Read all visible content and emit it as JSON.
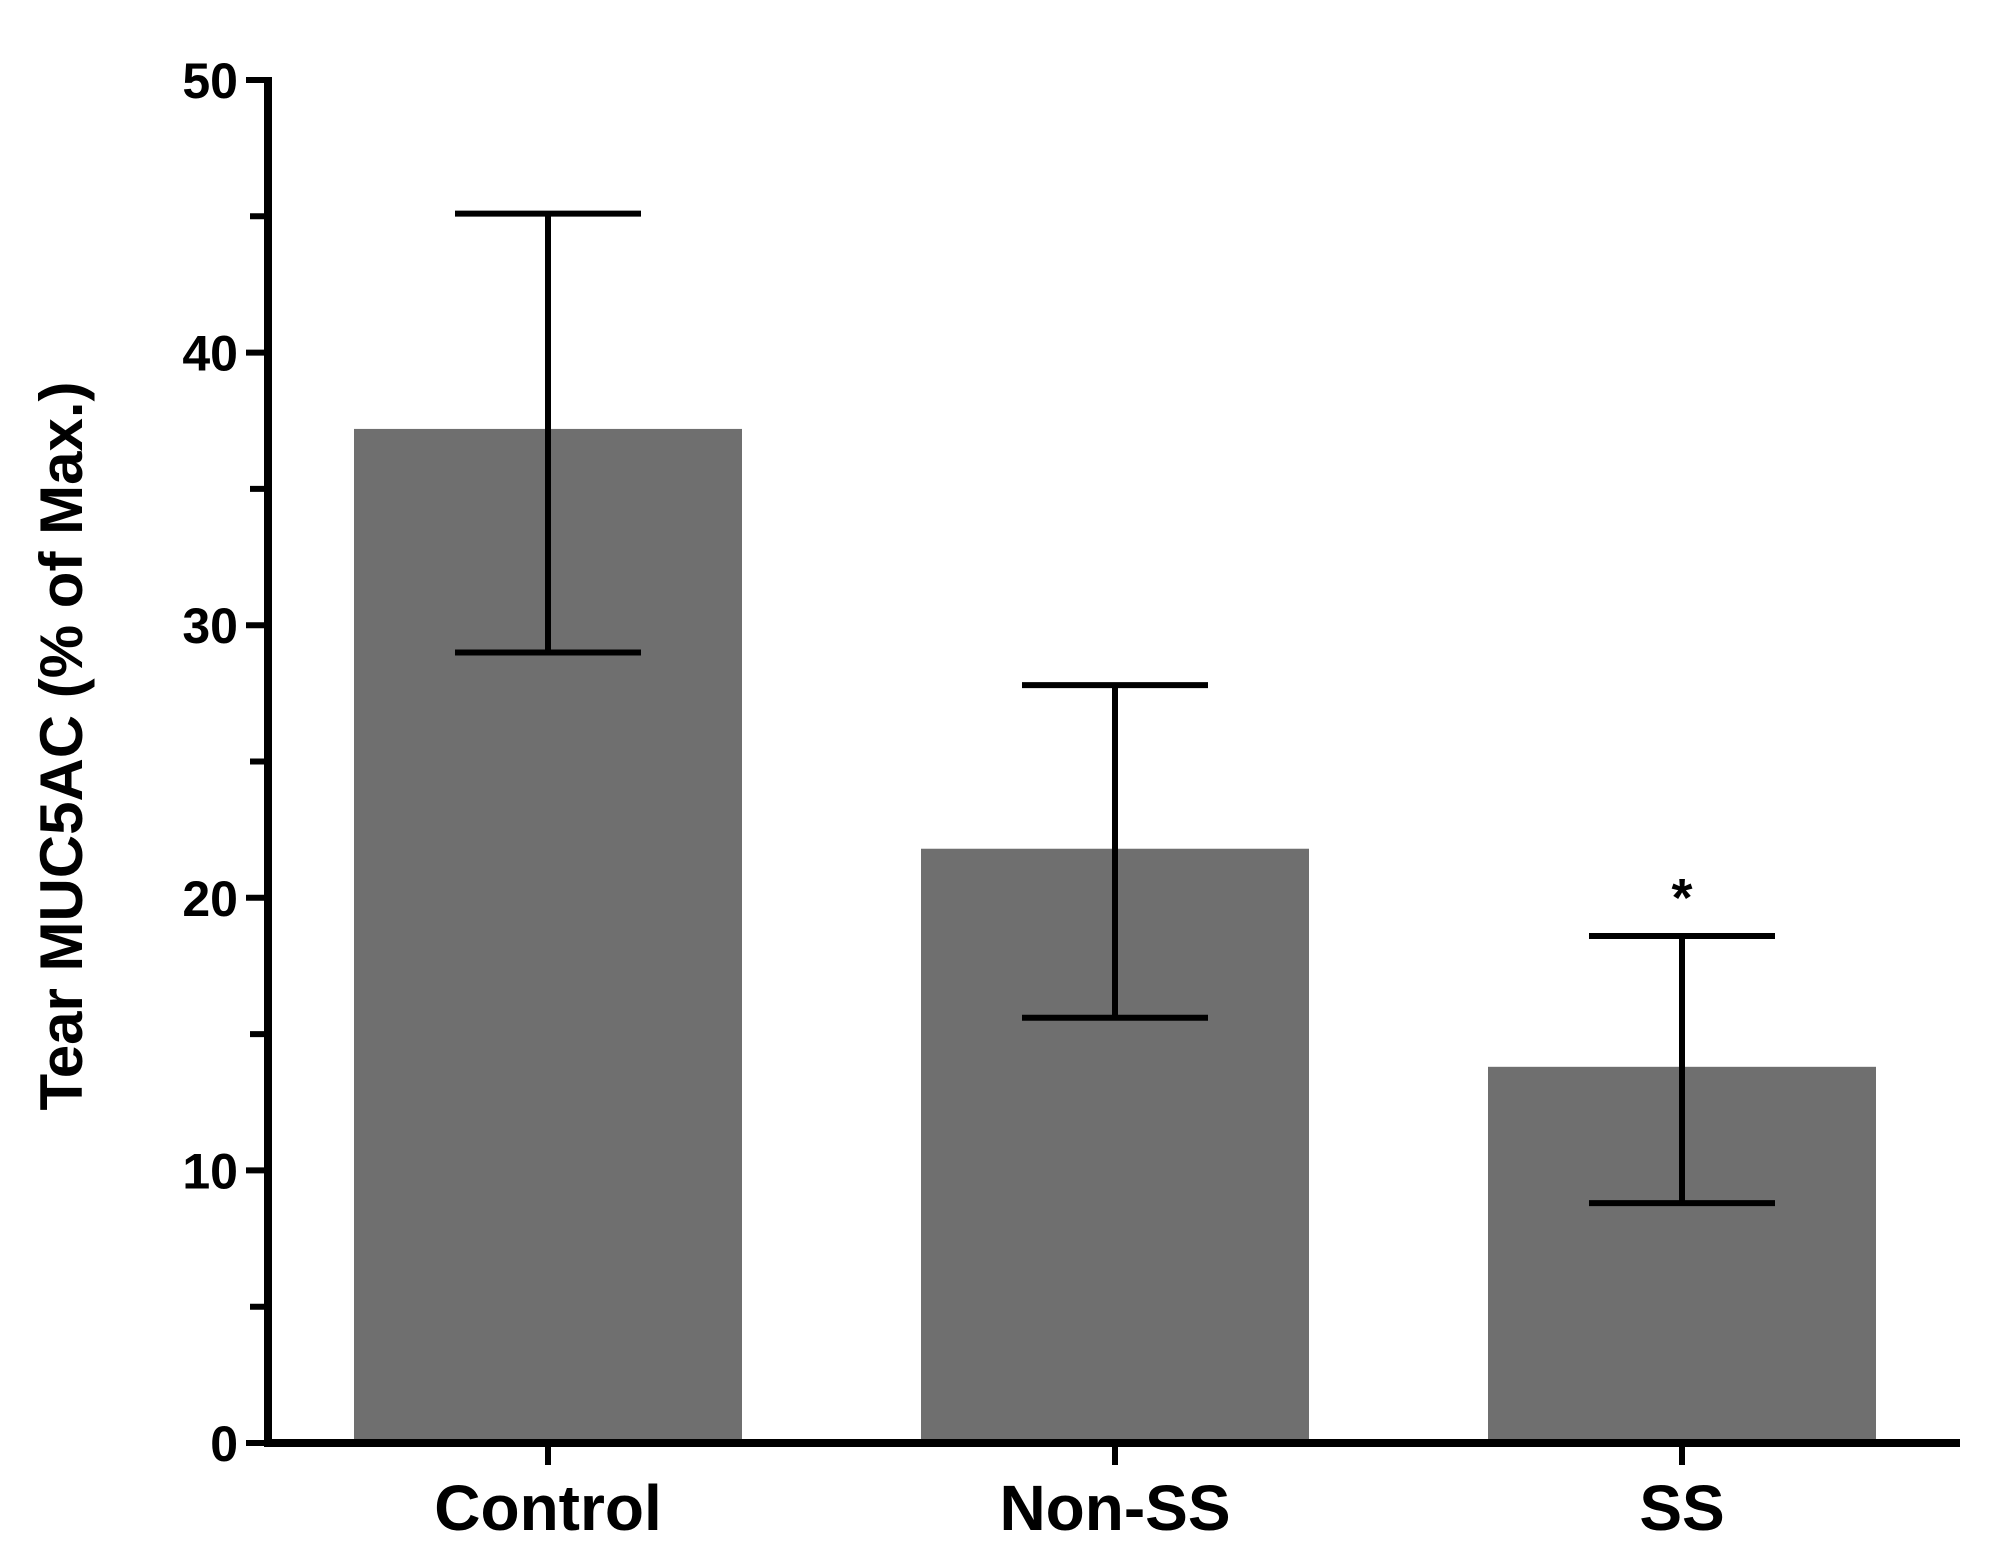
{
  "chart_data": {
    "type": "bar",
    "title": "",
    "xlabel": "",
    "ylabel": "Tear MUC5AC (% of Max.)",
    "ylim": [
      0,
      50
    ],
    "yticks_labeled": [
      0,
      10,
      20,
      30,
      40,
      50
    ],
    "yticks_minor": [
      5,
      15,
      25,
      35,
      45
    ],
    "grid": false,
    "legend": "none",
    "categories": [
      "Control",
      "Non-SS",
      "SS"
    ],
    "values": [
      37.2,
      21.8,
      13.8
    ],
    "error_upper": [
      45.1,
      27.8,
      18.6
    ],
    "error_lower": [
      29.0,
      15.6,
      8.8
    ],
    "annotations": [
      {
        "category": "SS",
        "text": "*"
      }
    ],
    "colors": {
      "bar": "#6f6f6f",
      "axis": "#000000",
      "text": "#000000"
    }
  }
}
